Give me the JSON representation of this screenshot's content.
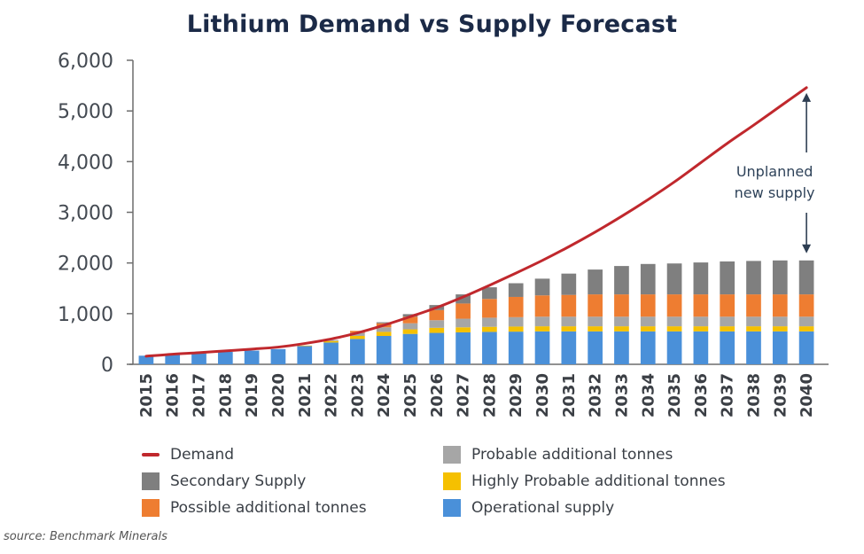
{
  "chart_data": {
    "type": "bar",
    "subtype": "stacked-bar-with-line",
    "title": "Lithium Demand vs Supply Forecast",
    "xlabel": "",
    "ylabel": "",
    "ylim": [
      0,
      6000
    ],
    "yticks": [
      0,
      1000,
      2000,
      3000,
      4000,
      5000,
      6000
    ],
    "ytick_labels": [
      "0",
      "1,000",
      "2,000",
      "3,000",
      "4,000",
      "5,000",
      "6,000"
    ],
    "grid": false,
    "categories": [
      "2015",
      "2016",
      "2017",
      "2018",
      "2019",
      "2020",
      "2021",
      "2022",
      "2023",
      "2024",
      "2025",
      "2026",
      "2027",
      "2028",
      "2029",
      "2030",
      "2031",
      "2032",
      "2033",
      "2034",
      "2035",
      "2036",
      "2037",
      "2038",
      "2039",
      "2040"
    ],
    "series": [
      {
        "name": "Operational supply",
        "kind": "bar",
        "color": "#4a90d9",
        "values": [
          170,
          190,
          215,
          245,
          270,
          300,
          360,
          430,
          500,
          560,
          600,
          620,
          630,
          640,
          645,
          650,
          650,
          650,
          650,
          650,
          650,
          650,
          650,
          650,
          650,
          650
        ]
      },
      {
        "name": "Highly Probable additional tonnes",
        "kind": "bar",
        "color": "#f5c000",
        "values": [
          0,
          0,
          0,
          0,
          0,
          0,
          10,
          30,
          60,
          80,
          90,
          100,
          100,
          100,
          100,
          100,
          100,
          100,
          100,
          100,
          100,
          100,
          100,
          100,
          100,
          100
        ]
      },
      {
        "name": "Probable additional tonnes",
        "kind": "bar",
        "color": "#a6a6a6",
        "values": [
          0,
          0,
          0,
          0,
          0,
          0,
          0,
          20,
          60,
          90,
          120,
          150,
          170,
          180,
          185,
          190,
          190,
          190,
          190,
          190,
          190,
          190,
          190,
          190,
          190,
          190
        ]
      },
      {
        "name": "Possible additional tonnes",
        "kind": "bar",
        "color": "#ee7d31",
        "values": [
          0,
          0,
          0,
          0,
          0,
          0,
          0,
          0,
          40,
          80,
          130,
          200,
          300,
          370,
          400,
          420,
          430,
          440,
          440,
          440,
          440,
          440,
          440,
          440,
          440,
          440
        ]
      },
      {
        "name": "Secondary Supply",
        "kind": "bar",
        "color": "#7f7f7f",
        "values": [
          0,
          0,
          0,
          0,
          0,
          0,
          0,
          0,
          0,
          20,
          50,
          100,
          180,
          230,
          270,
          330,
          420,
          490,
          560,
          600,
          610,
          630,
          650,
          660,
          670,
          670
        ]
      },
      {
        "name": "Demand",
        "kind": "line",
        "color": "#c0282d",
        "values": [
          160,
          200,
          230,
          265,
          300,
          340,
          410,
          500,
          620,
          770,
          940,
          1120,
          1330,
          1560,
          1800,
          2050,
          2320,
          2610,
          2920,
          3250,
          3600,
          3980,
          4360,
          4720,
          5090,
          5460
        ]
      }
    ],
    "annotations": [
      {
        "text_lines": [
          "Unplanned",
          "new supply"
        ],
        "type": "double-arrow",
        "x": "2040",
        "from": 2050,
        "to": 5460
      }
    ],
    "legend": {
      "placement": "bottom",
      "items": [
        {
          "label": "Demand",
          "type": "line",
          "color": "#c0282d"
        },
        {
          "label": "Probable additional tonnes",
          "type": "box",
          "color": "#a6a6a6"
        },
        {
          "label": "Secondary Supply",
          "type": "box",
          "color": "#7f7f7f"
        },
        {
          "label": "Highly Probable additional tonnes",
          "type": "box",
          "color": "#f5c000"
        },
        {
          "label": "Possible additional tonnes",
          "type": "box",
          "color": "#ee7d31"
        },
        {
          "label": "Operational supply",
          "type": "box",
          "color": "#4a90d9"
        }
      ]
    }
  },
  "source": "source: Benchmark Minerals"
}
